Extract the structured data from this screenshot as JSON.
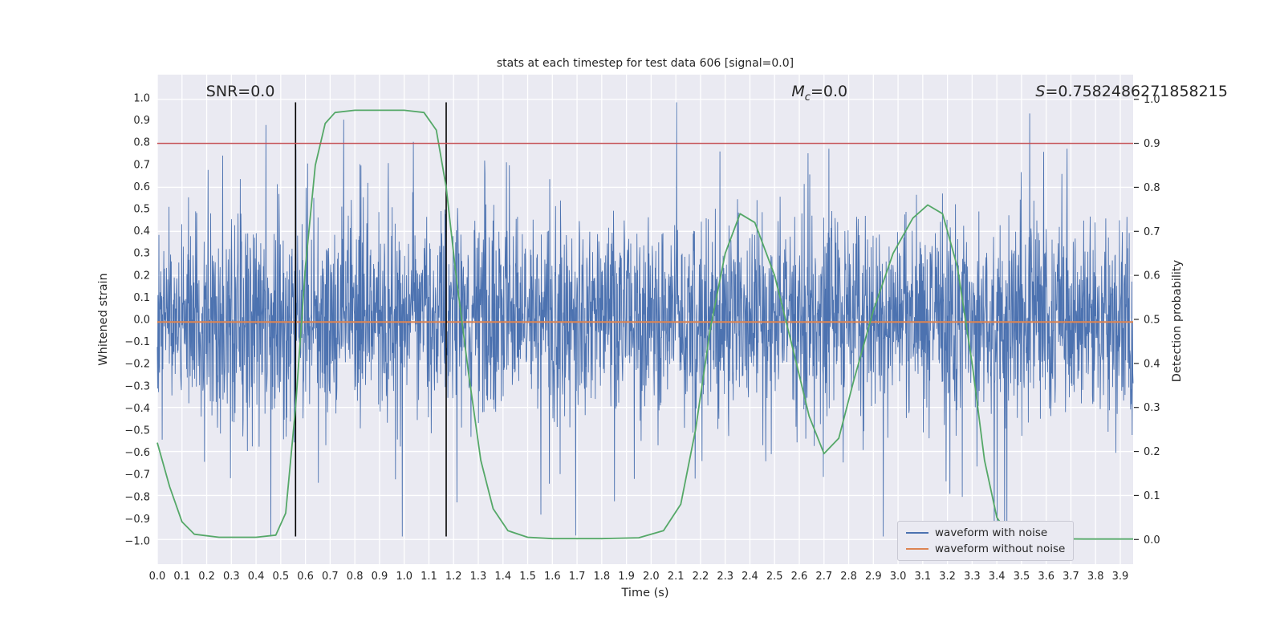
{
  "chart_data": {
    "type": "line",
    "title": "stats at each timestep for test data 606 [signal=0.0]",
    "xlabel": "Time (s)",
    "ylabel_left": "Whitened strain",
    "ylabel_right": "Detection probability",
    "plot_bg": "#eaeaf2",
    "grid_color": "#ffffff",
    "text_color": "#262626",
    "grid": true,
    "xlim": [
      0,
      3.952
    ],
    "ylim_left": [
      -1.105,
      1.105
    ],
    "ylim_right": [
      -0.056,
      1.056
    ],
    "x_ticks": [
      0.0,
      0.1,
      0.2,
      0.3,
      0.4,
      0.5,
      0.6,
      0.7,
      0.8,
      0.9,
      1.0,
      1.1,
      1.2,
      1.3,
      1.4,
      1.5,
      1.6,
      1.7,
      1.8,
      1.9,
      2.0,
      2.1,
      2.2,
      2.3,
      2.4,
      2.5,
      2.6,
      2.7,
      2.8,
      2.9,
      3.0,
      3.1,
      3.2,
      3.3,
      3.4,
      3.5,
      3.6,
      3.7,
      3.8,
      3.9
    ],
    "y_left_ticks": [
      -1.0,
      -0.9,
      -0.8,
      -0.7,
      -0.6,
      -0.5,
      -0.4,
      -0.3,
      -0.2,
      -0.1,
      0.0,
      0.1,
      0.2,
      0.3,
      0.4,
      0.5,
      0.6,
      0.7,
      0.8,
      0.9,
      1.0
    ],
    "y_right_ticks": [
      0.0,
      0.1,
      0.2,
      0.3,
      0.4,
      0.5,
      0.6,
      0.7,
      0.8,
      0.9,
      1.0
    ],
    "series": [
      {
        "name": "waveform with noise",
        "axis": "left",
        "color": "#4c72b0",
        "representation": "procedural-noise",
        "generator": {
          "seed": 20,
          "n_points": 3000,
          "std": 0.22,
          "heavy_std": 0.42,
          "heavy_frac": 0.08,
          "clip": 0.98
        }
      },
      {
        "name": "waveform without noise",
        "axis": "left",
        "color": "#dd8452",
        "x": [
          0,
          3.952
        ],
        "y": [
          -0.012,
          -0.012
        ]
      },
      {
        "name": "detection probability",
        "axis": "right",
        "color": "#55a868",
        "x": [
          0.0,
          0.05,
          0.1,
          0.15,
          0.25,
          0.4,
          0.48,
          0.52,
          0.56,
          0.6,
          0.64,
          0.68,
          0.72,
          0.8,
          0.9,
          1.0,
          1.08,
          1.13,
          1.17,
          1.21,
          1.26,
          1.31,
          1.36,
          1.42,
          1.5,
          1.6,
          1.8,
          1.95,
          2.05,
          2.12,
          2.18,
          2.24,
          2.3,
          2.36,
          2.42,
          2.5,
          2.58,
          2.64,
          2.7,
          2.76,
          2.82,
          2.9,
          2.98,
          3.06,
          3.12,
          3.18,
          3.24,
          3.3,
          3.35,
          3.4,
          3.45,
          3.55,
          3.75,
          3.952
        ],
        "y": [
          0.22,
          0.12,
          0.04,
          0.012,
          0.005,
          0.005,
          0.01,
          0.06,
          0.3,
          0.62,
          0.85,
          0.945,
          0.97,
          0.975,
          0.975,
          0.975,
          0.97,
          0.93,
          0.8,
          0.6,
          0.38,
          0.18,
          0.07,
          0.02,
          0.005,
          0.002,
          0.002,
          0.004,
          0.02,
          0.08,
          0.25,
          0.48,
          0.65,
          0.74,
          0.72,
          0.6,
          0.42,
          0.28,
          0.195,
          0.23,
          0.36,
          0.52,
          0.65,
          0.73,
          0.76,
          0.74,
          0.62,
          0.4,
          0.18,
          0.05,
          0.01,
          0.002,
          0.001,
          0.001
        ]
      }
    ],
    "threshold_line": {
      "value": 0.9,
      "axis": "right",
      "color": "#c44e52"
    },
    "vlines": {
      "x": [
        0.56,
        1.17
      ],
      "ymin": -0.98,
      "ymax": 0.98,
      "color": "#000000"
    },
    "annotations": {
      "snr": {
        "text": "SNR=0.0",
        "x_frac": 0.05
      },
      "mc": {
        "prefix": "M",
        "sub": "c",
        "value": "=0.0",
        "x_frac": 0.65
      },
      "s": {
        "prefix": "S",
        "value": "=0.7582486271858215",
        "x_frac": 0.9
      }
    },
    "legend": {
      "position": "lower right",
      "items": [
        {
          "label": "waveform with noise",
          "color": "#4c72b0"
        },
        {
          "label": "waveform without noise",
          "color": "#dd8452"
        }
      ]
    }
  }
}
